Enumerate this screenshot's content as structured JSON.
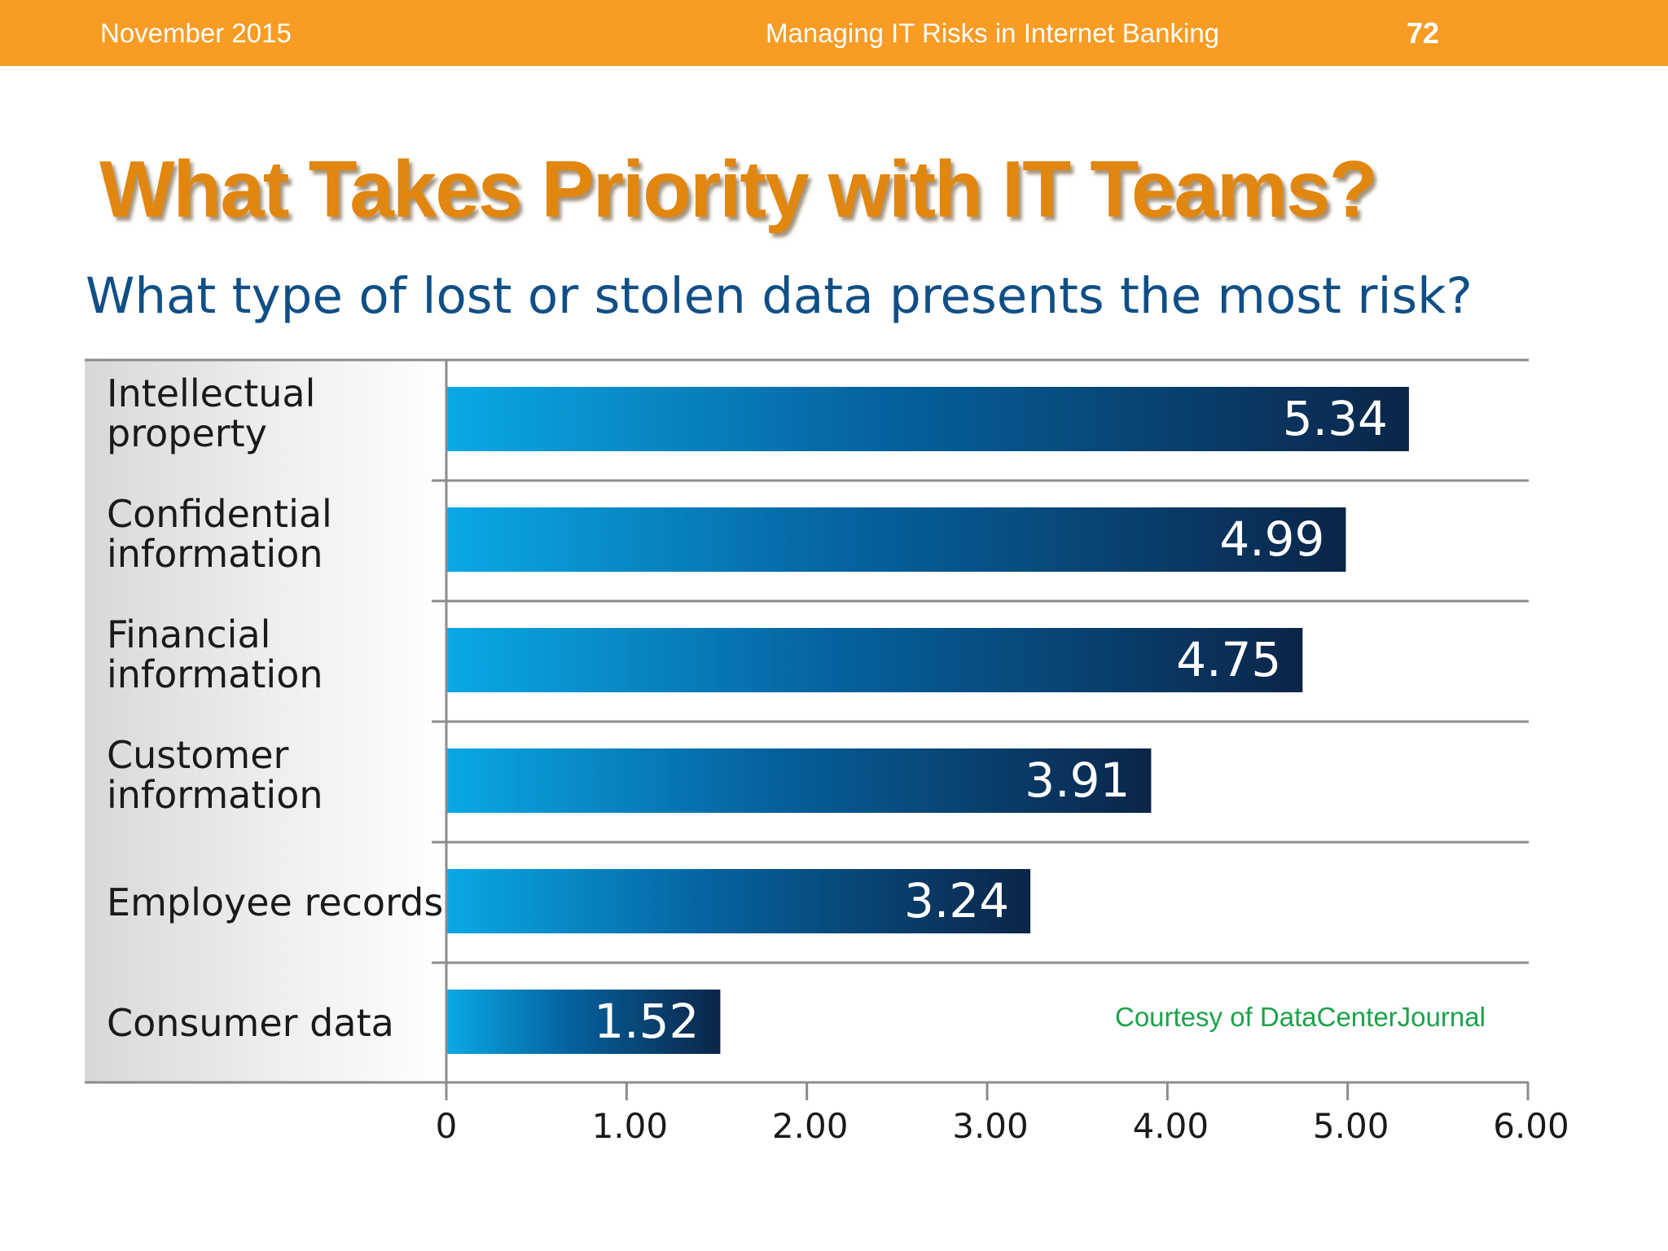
{
  "header": {
    "date": "November 2015",
    "presentation_title": "Managing IT Risks in Internet Banking",
    "page_number": "72"
  },
  "slide": {
    "title": "What Takes Priority with IT Teams?",
    "courtesy": "Courtesy of DataCenterJournal"
  },
  "colors": {
    "header_bar": "#f89c24",
    "title": "#e1860e",
    "subtitle": "#104f86",
    "bar_light": "#0aa8e6",
    "bar_dark": "#0b2548",
    "courtesy": "#1ba24a"
  },
  "chart_data": {
    "type": "bar",
    "orientation": "horizontal",
    "title": "What type of lost or stolen data presents the most risk?",
    "categories": [
      [
        "Intellectual",
        "property"
      ],
      [
        "Confidential",
        "information"
      ],
      [
        "Financial",
        "information"
      ],
      [
        "Customer",
        "information"
      ],
      [
        "Employee records"
      ],
      [
        "Consumer data"
      ]
    ],
    "values": [
      5.34,
      4.99,
      4.75,
      3.91,
      3.24,
      1.52
    ],
    "value_labels": [
      "5.34",
      "4.99",
      "4.75",
      "3.91",
      "3.24",
      "1.52"
    ],
    "xlim": [
      0,
      6
    ],
    "ticks": [
      0,
      1,
      2,
      3,
      4,
      5,
      6
    ],
    "tick_labels": [
      "0",
      "1.00",
      "2.00",
      "3.00",
      "4.00",
      "5.00",
      "6.00"
    ],
    "xlabel": "",
    "ylabel": "",
    "grid": "horizontal separators between categories"
  }
}
